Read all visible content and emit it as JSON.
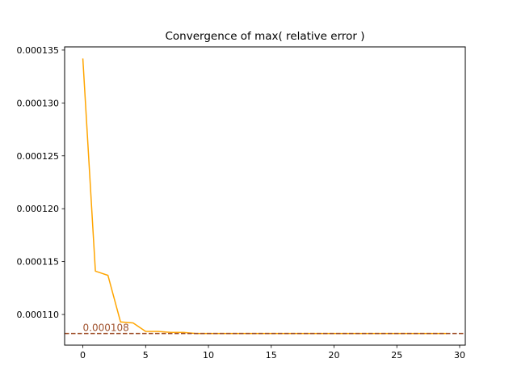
{
  "chart_data": {
    "type": "line",
    "title": "Convergence of max( relative error )",
    "xlabel": "",
    "ylabel": "",
    "xlim": [
      -1.45,
      30.45
    ],
    "ylim": [
      0.0001071,
      0.0001353
    ],
    "xticks": [
      0,
      5,
      10,
      15,
      20,
      25,
      30
    ],
    "xtick_labels": [
      "0",
      "5",
      "10",
      "15",
      "20",
      "25",
      "30"
    ],
    "yticks": [
      0.00011,
      0.000115,
      0.00012,
      0.000125,
      0.00013,
      0.000135
    ],
    "ytick_labels": [
      "0.000110",
      "0.000115",
      "0.000120",
      "0.000125",
      "0.000130",
      "0.000135"
    ],
    "grid": false,
    "series": [
      {
        "color": "#ffa500",
        "x": [
          0,
          1,
          2,
          3,
          4,
          5,
          6,
          7,
          8,
          9,
          10,
          11,
          12,
          13,
          14,
          15,
          16,
          17,
          18,
          19,
          20,
          21,
          22,
          23,
          24,
          25,
          26,
          27,
          28,
          29
        ],
        "values": [
          0.0001342,
          0.0001141,
          0.0001137,
          0.0001093,
          0.0001092,
          0.0001084,
          0.0001084,
          0.0001083,
          0.0001083,
          0.0001082,
          0.0001082,
          0.0001082,
          0.0001082,
          0.0001082,
          0.0001082,
          0.0001082,
          0.0001082,
          0.0001082,
          0.0001082,
          0.0001082,
          0.0001082,
          0.0001082,
          0.0001082,
          0.0001082,
          0.0001082,
          0.0001082,
          0.0001082,
          0.0001082,
          0.0001082,
          0.0001082
        ]
      }
    ],
    "reference_line": {
      "value": 0.0001082,
      "style": "dashed",
      "color": "#a0522d",
      "label": "0.000108"
    }
  }
}
